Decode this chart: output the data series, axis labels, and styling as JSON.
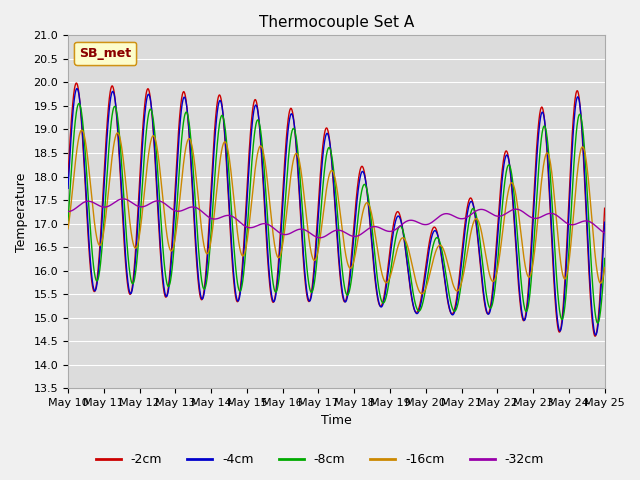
{
  "title": "Thermocouple Set A",
  "xlabel": "Time",
  "ylabel": "Temperature",
  "ylim": [
    13.5,
    21.0
  ],
  "xtick_labels": [
    "May 10",
    "May 11",
    "May 12",
    "May 13",
    "May 14",
    "May 15",
    "May 16",
    "May 17",
    "May 18",
    "May 19",
    "May 20",
    "May 21",
    "May 22",
    "May 23",
    "May 24",
    "May 25"
  ],
  "ytick_values": [
    13.5,
    14.0,
    14.5,
    15.0,
    15.5,
    16.0,
    16.5,
    17.0,
    17.5,
    18.0,
    18.5,
    19.0,
    19.5,
    20.0,
    20.5,
    21.0
  ],
  "colors": {
    "-2cm": "#cc0000",
    "-4cm": "#0000cc",
    "-8cm": "#00aa00",
    "-16cm": "#cc8800",
    "-32cm": "#9900aa"
  },
  "legend_label": "SB_met",
  "legend_bg": "#ffffcc",
  "legend_edge": "#cc8800",
  "plot_bg": "#dcdcdc",
  "fig_bg": "#f0f0f0",
  "grid_color": "#ffffff",
  "title_fontsize": 11,
  "axis_fontsize": 9,
  "tick_fontsize": 8
}
